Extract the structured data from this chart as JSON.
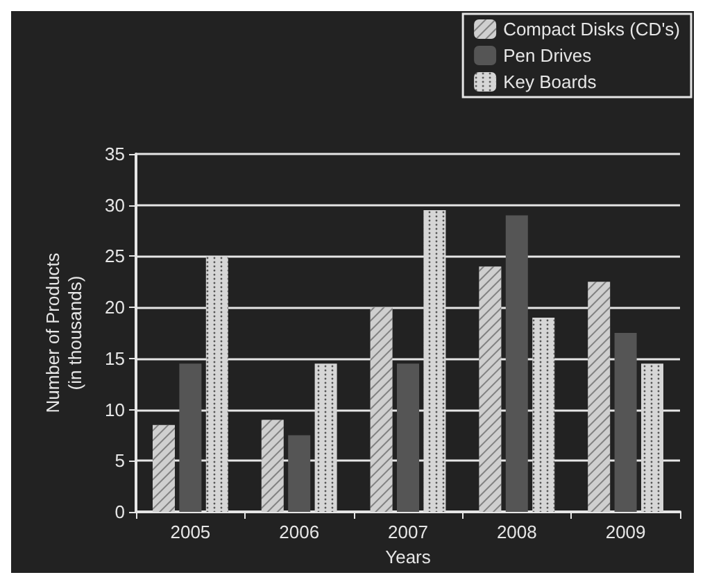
{
  "chart_data": {
    "type": "bar",
    "xlabel": "Years",
    "ylabel": "Number of Products\n(in thousands)",
    "categories": [
      "2005",
      "2006",
      "2007",
      "2008",
      "2009"
    ],
    "series": [
      {
        "name": "Compact Disks (CD's)",
        "color": "#cfcfcf",
        "values": [
          8.5,
          9,
          20,
          24,
          22.5
        ]
      },
      {
        "name": "Pen Drives",
        "color": "#555555",
        "values": [
          14.5,
          7.5,
          14.5,
          29,
          17.5
        ]
      },
      {
        "name": "Key Boards",
        "color": "#d6d6d6",
        "values": [
          25,
          14.5,
          29.5,
          19,
          14.5
        ]
      }
    ],
    "ylim": [
      0,
      35
    ],
    "yticks": [
      0,
      5,
      10,
      15,
      20,
      25,
      30,
      35
    ],
    "grid": "y",
    "legend": "top right"
  }
}
